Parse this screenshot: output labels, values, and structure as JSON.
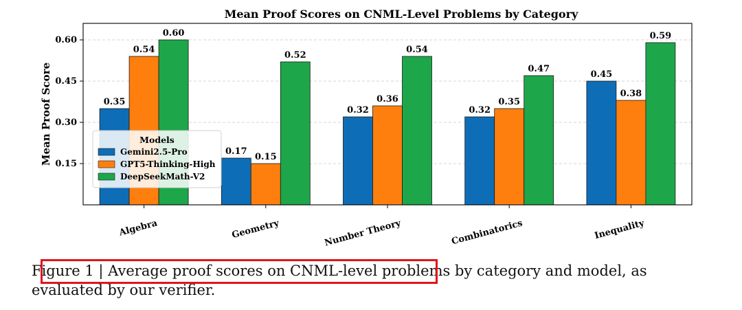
{
  "chart_data": {
    "type": "bar",
    "title": "Mean Proof Scores on CNML-Level Problems by Category",
    "xlabel": "",
    "ylabel": "Mean Proof Score",
    "ylim": [
      0.0,
      0.66
    ],
    "yticks": [
      0.15,
      0.3,
      0.45,
      0.6
    ],
    "ytick_labels": [
      "0.15",
      "0.30",
      "0.45",
      "0.60"
    ],
    "grid": "y-dashed",
    "categories": [
      "Algebra",
      "Geometry",
      "Number Theory",
      "Combinatorics",
      "Inequality"
    ],
    "series": [
      {
        "name": "Gemini2.5-Pro",
        "color": "#0e6db7",
        "values": [
          0.35,
          0.17,
          0.32,
          0.32,
          0.45
        ],
        "labels": [
          "0.35",
          "0.17",
          "0.32",
          "0.32",
          "0.45"
        ]
      },
      {
        "name": "GPT5-Thinking-High",
        "color": "#ff7f0e",
        "values": [
          0.54,
          0.15,
          0.36,
          0.35,
          0.38
        ],
        "labels": [
          "0.54",
          "0.15",
          "0.36",
          "0.35",
          "0.38"
        ]
      },
      {
        "name": "DeepSeekMath-V2",
        "color": "#1ea64a",
        "values": [
          0.6,
          0.52,
          0.54,
          0.47,
          0.59
        ],
        "labels": [
          "0.60",
          "0.52",
          "0.54",
          "0.47",
          "0.59"
        ]
      }
    ],
    "legend": {
      "title": "Models",
      "placement": "lower-left"
    }
  },
  "caption": {
    "text": "Figure 1 | Average proof scores on CNML-level problems by category and model, as evaluated by our verifier."
  }
}
